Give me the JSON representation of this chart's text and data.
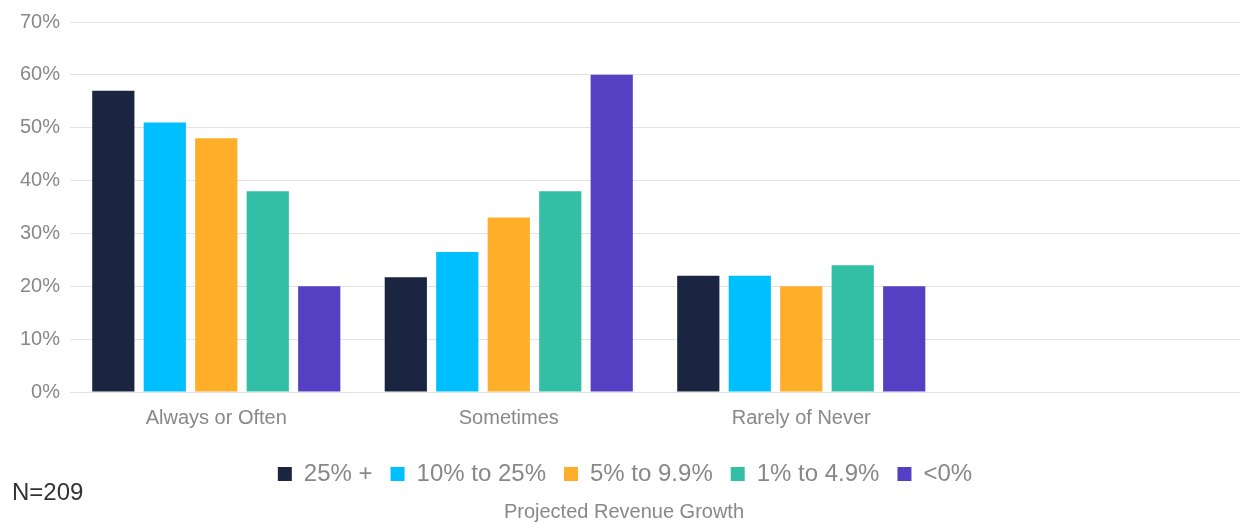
{
  "chart_data": {
    "type": "bar",
    "categories": [
      "Always or Often",
      "Sometimes",
      "Rarely of Never",
      null
    ],
    "series": [
      {
        "name": "25% +",
        "color": "#1b2541",
        "values": [
          57,
          21.7,
          22,
          null
        ]
      },
      {
        "name": "10% to 25%",
        "color": "#00bfff",
        "values": [
          51,
          26.5,
          22,
          null
        ]
      },
      {
        "name": "5% to 9.9%",
        "color": "#ffae2a",
        "values": [
          48,
          33,
          20,
          null
        ]
      },
      {
        "name": "1% to 4.9%",
        "color": "#33bfa5",
        "values": [
          38,
          38,
          24,
          null
        ]
      },
      {
        "name": "<0%",
        "color": "#5540c4",
        "values": [
          20,
          60,
          20,
          null
        ]
      }
    ],
    "ylim": [
      0,
      70
    ],
    "yticks": [
      {
        "value": 0,
        "label": "0%"
      },
      {
        "value": 10,
        "label": "10%"
      },
      {
        "value": 20,
        "label": "20%"
      },
      {
        "value": 30,
        "label": "30%"
      },
      {
        "value": 40,
        "label": "40%"
      },
      {
        "value": 50,
        "label": "50%"
      },
      {
        "value": 60,
        "label": "60%"
      },
      {
        "value": 70,
        "label": "70%"
      }
    ],
    "grid": "y",
    "legend": "bottom",
    "legend_title": "Projected Revenue Growth",
    "annotations": [
      "N=209"
    ]
  }
}
